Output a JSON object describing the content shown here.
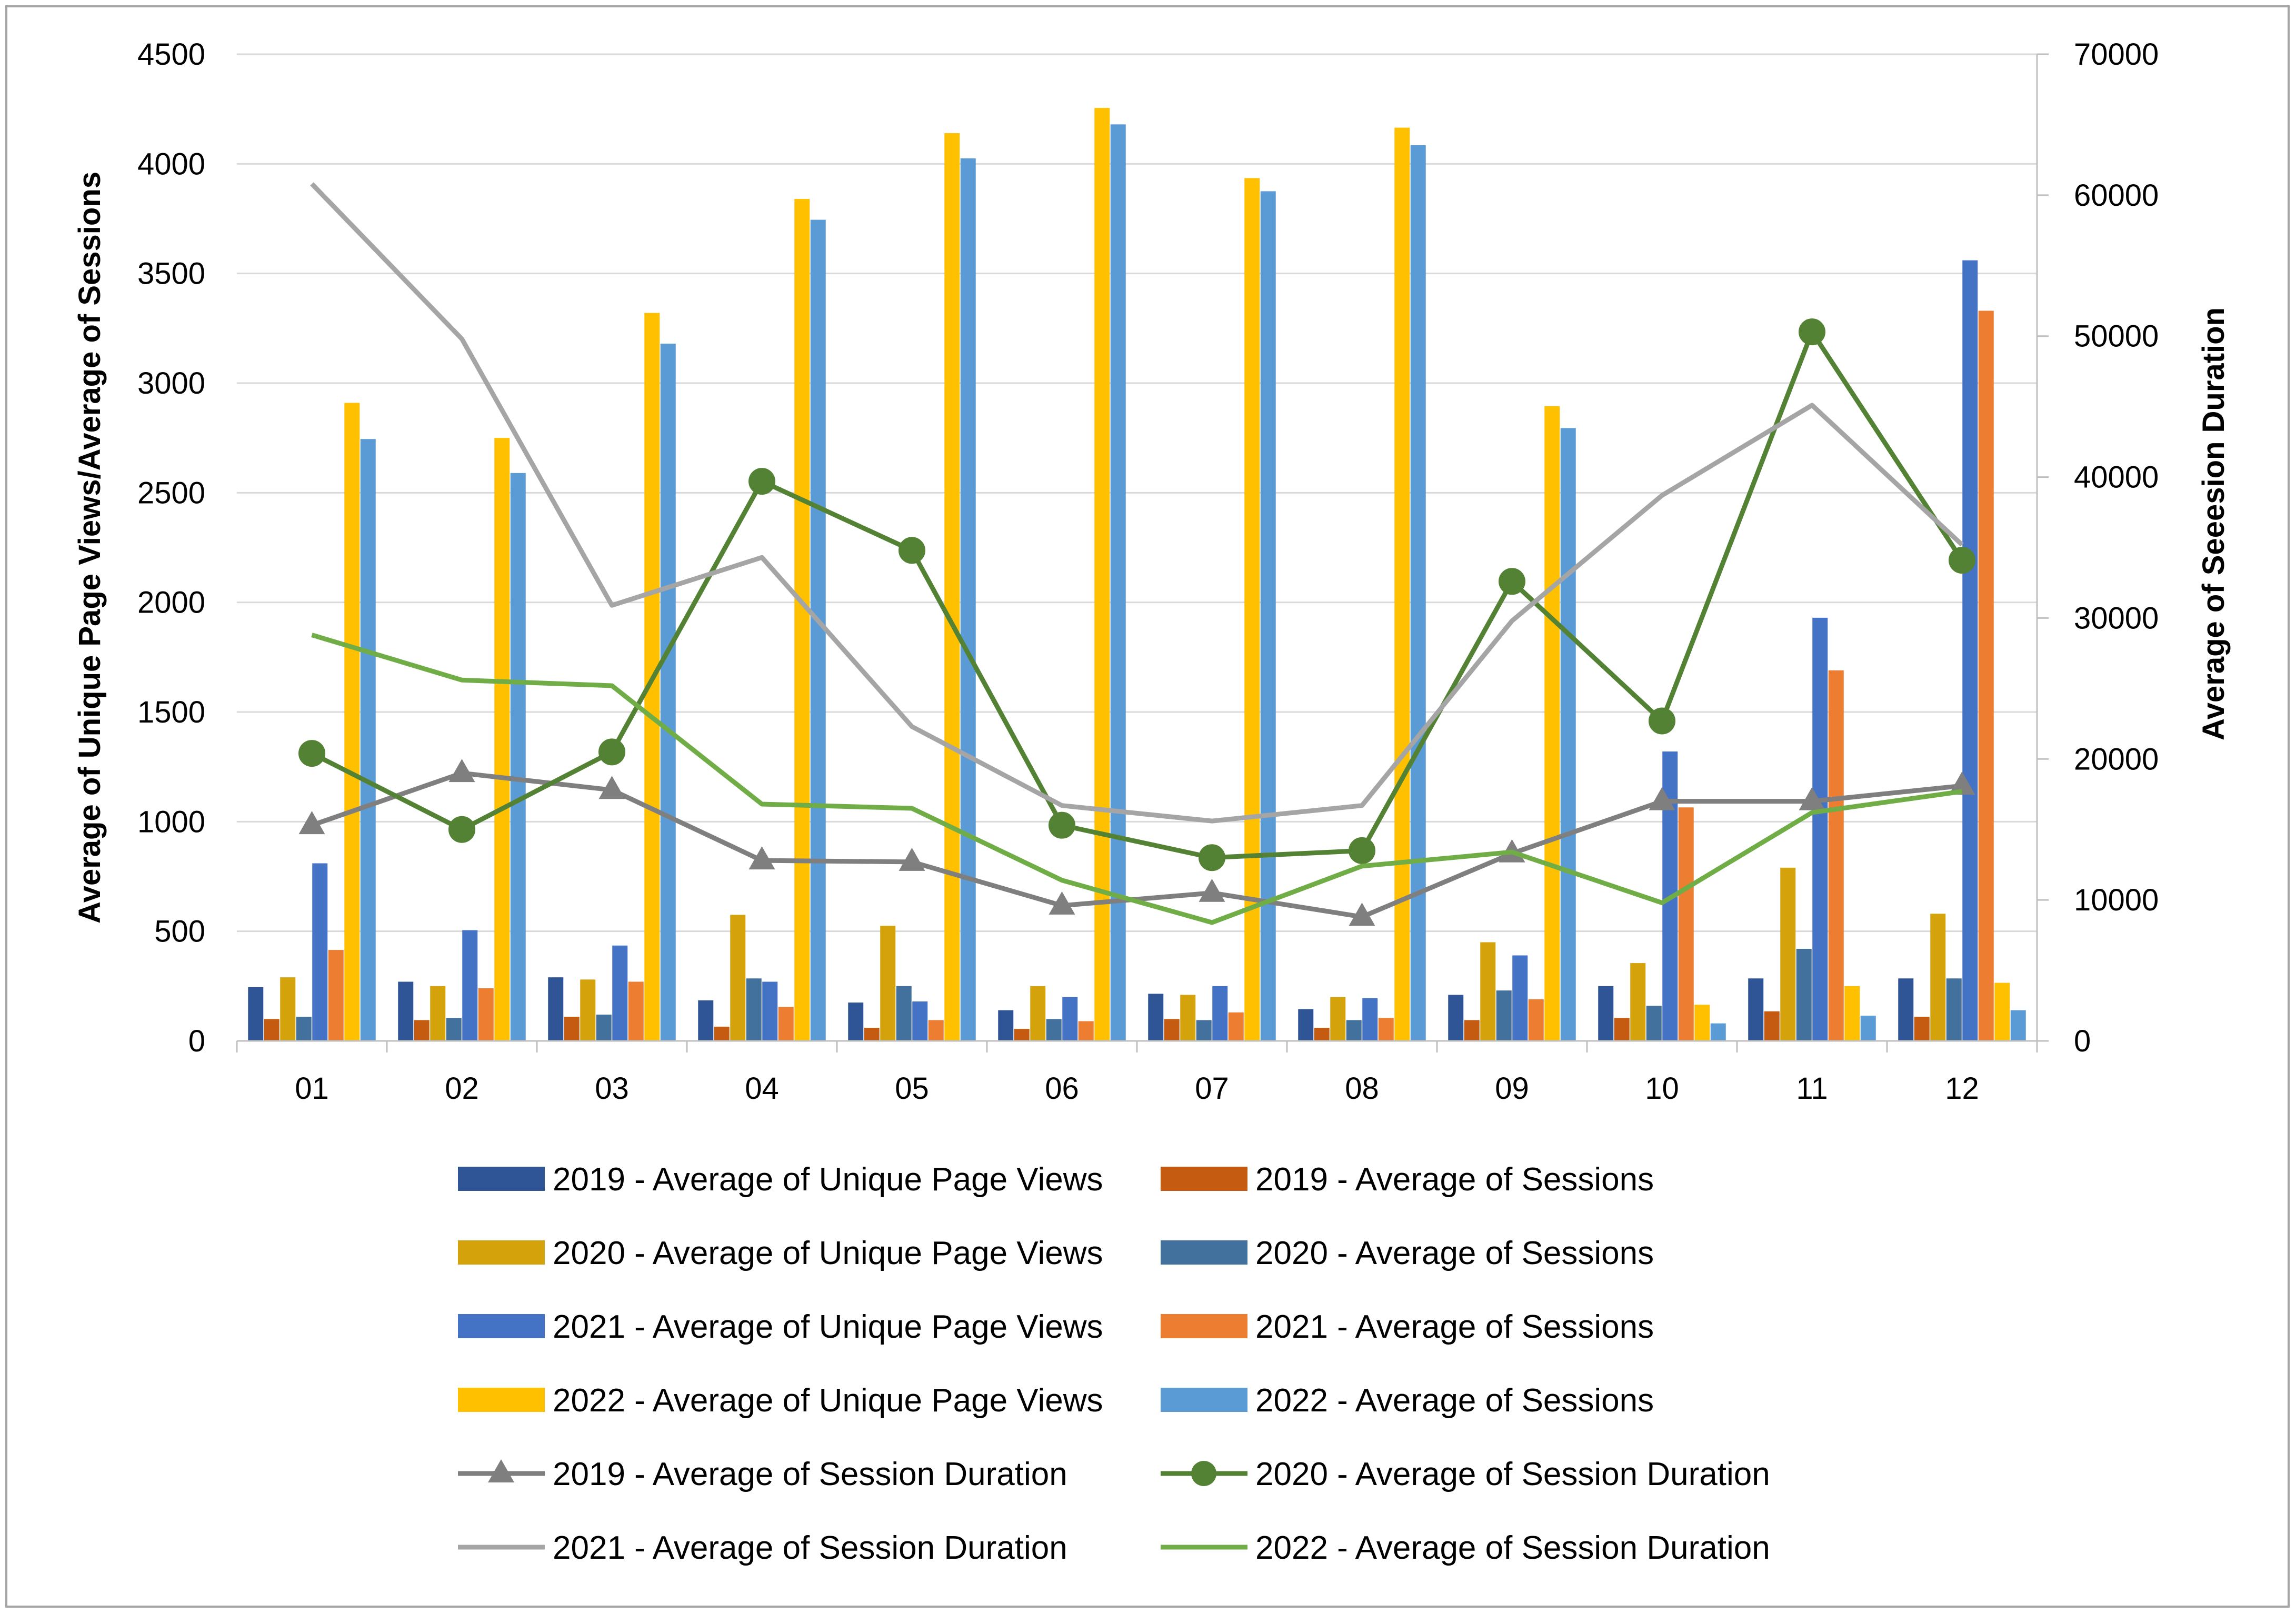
{
  "chart_data": {
    "type": "bar",
    "title": "",
    "categories": [
      "01",
      "02",
      "03",
      "04",
      "05",
      "06",
      "07",
      "08",
      "09",
      "10",
      "11",
      "12"
    ],
    "y_left": {
      "label": "Average of Unique Page Views/Average of Sessions",
      "lim": [
        0,
        4500
      ],
      "ticks": [
        0,
        500,
        1000,
        1500,
        2000,
        2500,
        3000,
        3500,
        4000,
        4500
      ]
    },
    "y_right": {
      "label": "Average  of Seeesion Duration",
      "lim": [
        0,
        70000
      ],
      "ticks": [
        0,
        10000,
        20000,
        30000,
        40000,
        50000,
        60000,
        70000
      ]
    },
    "bar_series": [
      {
        "name": "2019 - Average of Unique Page Views",
        "color": "#2f5597",
        "values": [
          245,
          270,
          290,
          185,
          175,
          140,
          215,
          145,
          210,
          250,
          285,
          285
        ]
      },
      {
        "name": "2019 - Average of Sessions",
        "color": "#c55a11",
        "values": [
          100,
          95,
          110,
          65,
          60,
          55,
          100,
          60,
          95,
          105,
          135,
          110
        ]
      },
      {
        "name": "2020 - Average of Unique Page Views",
        "color": "#d4a20a",
        "values": [
          290,
          250,
          280,
          575,
          525,
          250,
          210,
          200,
          450,
          355,
          790,
          580
        ]
      },
      {
        "name": "2020 - Average of Sessions",
        "color": "#41719c",
        "values": [
          110,
          105,
          120,
          285,
          250,
          100,
          95,
          95,
          230,
          160,
          420,
          285
        ]
      },
      {
        "name": "2021 - Average of Unique Page Views",
        "color": "#4472c4",
        "values": [
          810,
          505,
          435,
          270,
          180,
          200,
          250,
          195,
          390,
          1320,
          1930,
          3560
        ]
      },
      {
        "name": "2021 - Average of Sessions",
        "color": "#ed7d31",
        "values": [
          415,
          240,
          270,
          155,
          95,
          90,
          130,
          105,
          190,
          1065,
          1690,
          3330
        ]
      },
      {
        "name": "2022 - Average of Unique Page Views",
        "color": "#ffc000",
        "values": [
          2910,
          2750,
          3320,
          3840,
          4140,
          4255,
          3935,
          4165,
          2895,
          165,
          250,
          265
        ]
      },
      {
        "name": "2022 - Average of Sessions",
        "color": "#5b9bd5",
        "values": [
          2745,
          2590,
          3180,
          3745,
          4025,
          4180,
          3875,
          4085,
          2795,
          80,
          115,
          140
        ]
      }
    ],
    "line_series": [
      {
        "name": "2019 - Average of Session Duration",
        "color": "#7f7f7f",
        "marker": "triangle",
        "values": [
          15300,
          19000,
          17800,
          12800,
          12700,
          9600,
          10500,
          8800,
          13300,
          17000,
          17000,
          18100
        ]
      },
      {
        "name": "2020 - Average of Session Duration",
        "color": "#548235",
        "marker": "circle",
        "values": [
          20400,
          15000,
          20500,
          39700,
          34800,
          15300,
          13000,
          13500,
          32600,
          22700,
          50300,
          34100
        ]
      },
      {
        "name": "2021 - Average of Session Duration",
        "color": "#a5a5a5",
        "marker": "none",
        "values": [
          60800,
          49800,
          30900,
          34300,
          22300,
          16700,
          15600,
          16700,
          29800,
          38700,
          45100,
          35200
        ]
      },
      {
        "name": "2022 - Average of Session Duration",
        "color": "#70ad47",
        "marker": "none",
        "values": [
          28800,
          25600,
          25200,
          16800,
          16500,
          11400,
          8400,
          12400,
          13400,
          9800,
          16200,
          17700
        ]
      }
    ],
    "legend_order": [
      "2019 - Average of Unique Page Views",
      "2019 - Average of Sessions",
      "2020 - Average of Unique Page Views",
      "2020 - Average of Sessions",
      "2021 - Average of Unique Page Views",
      "2021 - Average of Sessions",
      "2022 - Average of Unique Page Views",
      "2022 - Average of Sessions",
      "2019 - Average of Session Duration",
      "2020 - Average of Session Duration",
      "2021 - Average of Session Duration",
      "2022 - Average of Session Duration"
    ],
    "legend_position": "bottom",
    "grid": true
  }
}
